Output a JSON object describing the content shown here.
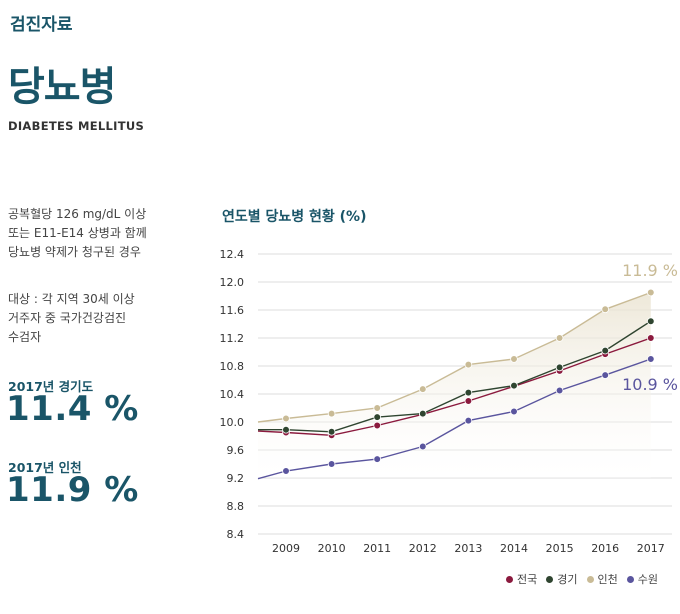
{
  "header": {
    "section": "검진자료",
    "title_ko": "당뇨병",
    "title_en": "DIABETES MELLITUS"
  },
  "description": {
    "criteria": [
      "공복혈당 126 mg/dL 이상",
      "또는 E11-E14 상병과 함께",
      "당뇨병 약제가 청구된 경우"
    ],
    "target": [
      "대상 : 각 지역 30세 이상",
      "거주자 중 국가건강검진",
      "수검자"
    ]
  },
  "stats": [
    {
      "label": "2017년 경기도",
      "value": "11.4 %"
    },
    {
      "label": "2017년 인천",
      "value": "11.9 %"
    }
  ],
  "chart_data": {
    "type": "line",
    "title": "연도별 당뇨병 현황 (%)",
    "x": [
      "2009",
      "2010",
      "2011",
      "2012",
      "2013",
      "2014",
      "2015",
      "2016",
      "2017"
    ],
    "y_ticks": [
      "12.4",
      "12.0",
      "11.6",
      "11.2",
      "10.8",
      "10.4",
      "10.0",
      "9.6",
      "9.2",
      "8.8",
      "8.4"
    ],
    "ylim": [
      8.4,
      12.4
    ],
    "grid": true,
    "legend_position": "bottom-right",
    "series": [
      {
        "name": "전국",
        "color": "#8b1a3e",
        "start": 9.87,
        "values": [
          9.85,
          9.81,
          9.95,
          10.11,
          10.3,
          10.51,
          10.73,
          10.97,
          11.2
        ]
      },
      {
        "name": "경기",
        "color": "#2f4530",
        "start": 9.89,
        "values": [
          9.89,
          9.86,
          10.07,
          10.12,
          10.42,
          10.52,
          10.78,
          11.02,
          11.44
        ]
      },
      {
        "name": "인천",
        "color": "#c9bb96",
        "start": 10.0,
        "values": [
          10.05,
          10.12,
          10.2,
          10.47,
          10.82,
          10.9,
          11.2,
          11.61,
          11.85
        ]
      },
      {
        "name": "수원",
        "color": "#5a559e",
        "start": 9.19,
        "values": [
          9.3,
          9.4,
          9.47,
          9.65,
          10.02,
          10.15,
          10.45,
          10.67,
          10.9
        ]
      }
    ],
    "annotations": [
      {
        "text": "11.9 %",
        "series": "인천",
        "color": "#c9bb96"
      },
      {
        "text": "10.9 %",
        "series": "수원",
        "color": "#5a559e"
      }
    ]
  }
}
